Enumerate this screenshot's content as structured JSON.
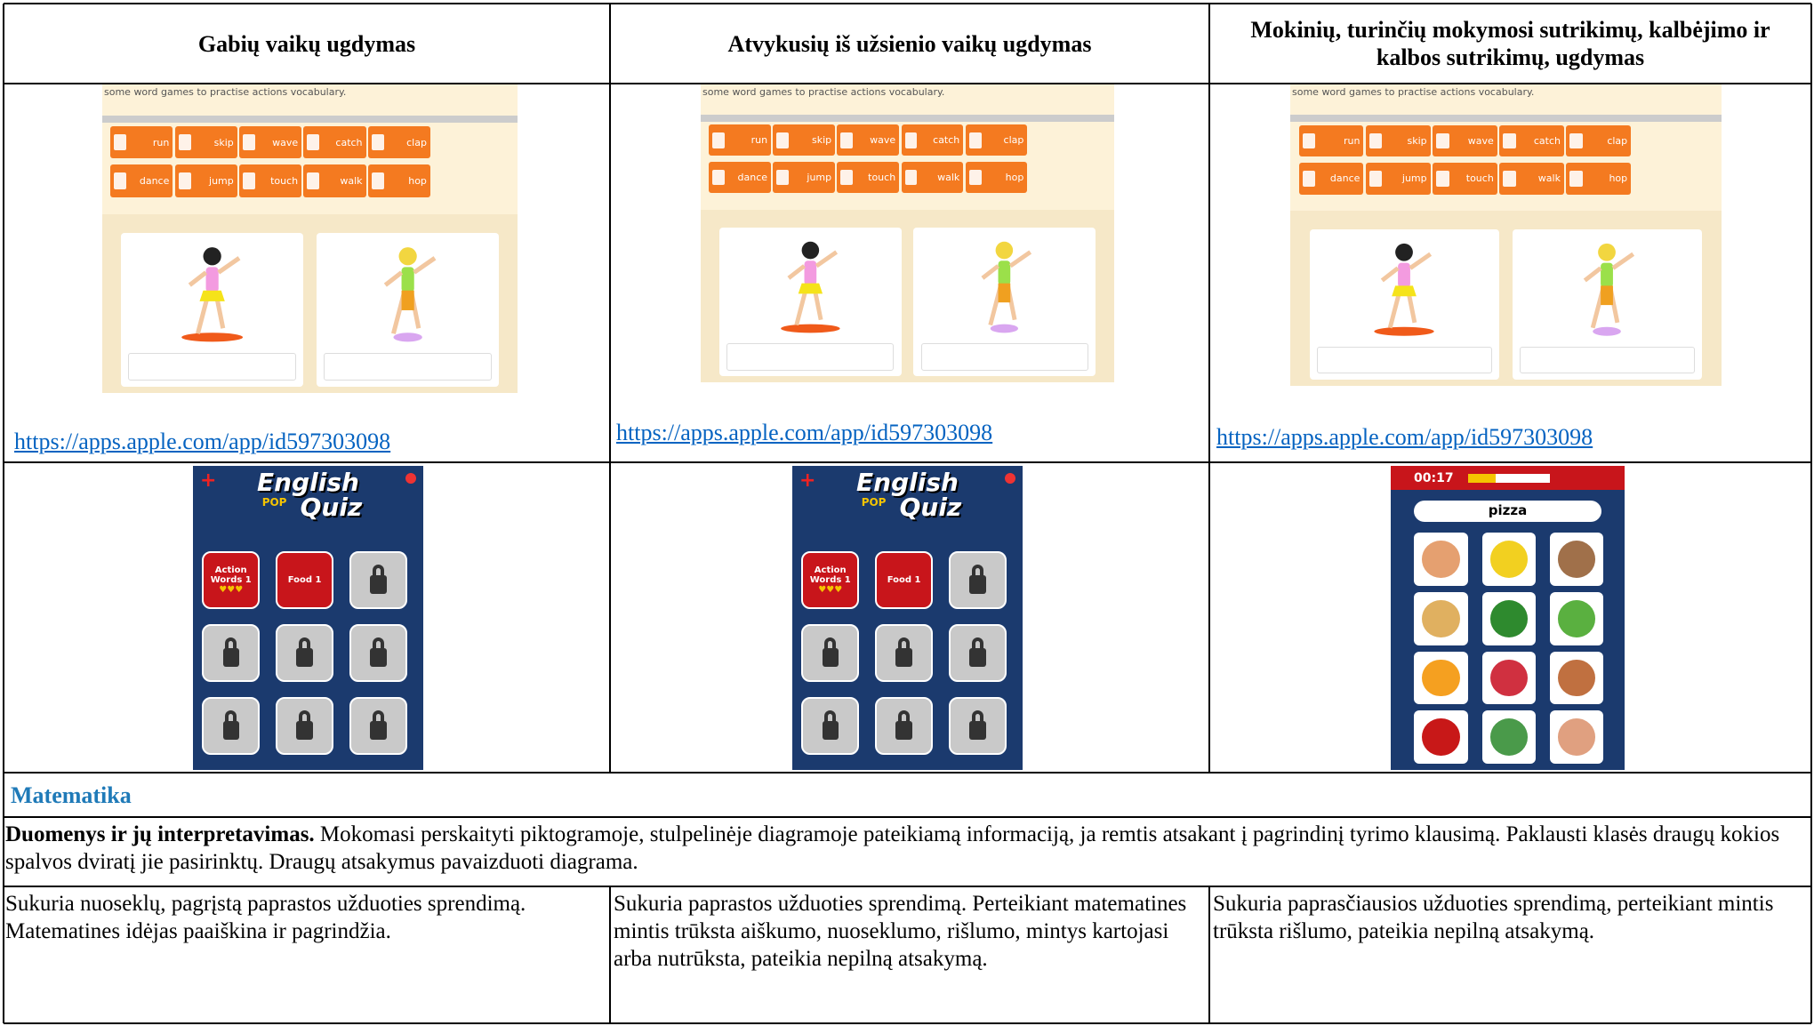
{
  "table": {
    "header": [
      "Gabių vaikų ugdymas",
      "Atvykusių iš užsienio vaikų ugdymas",
      "Mokinių, turinčių mokymosi sutrikimų, kalbėjimo ir kalbos sutrikimų, ugdymas"
    ],
    "links": [
      "https://apps.apple.com/app/id597303098",
      "https://apps.apple.com/app/id597303098",
      "https://apps.apple.com/app/id597303098"
    ],
    "section": "Matematika",
    "topic": {
      "title": "Duomenys ir jų interpretavimas.",
      "text": "Mokomasi perskaityti piktogramoje, stulpelinėje diagramoje pateikiamą informaciją, ja remtis atsakant į pagrindinį tyrimo klausimą. Paklausti klasės draugų kokios spalvos dviratį jie pasirinktų. Draugų atsakymus pavaizduoti diagrama."
    },
    "levels": [
      "Sukuria nuoseklų, pagrįstą paprastos užduoties sprendimą. Matematines idėjas paaiškina ir pagrindžia.",
      "Sukuria paprastos užduoties sprendimą. Perteikiant matematines mintis trūksta aiškumo, nuoseklumo, rišlumo, mintys kartojasi arba nutrūksta, pateikia nepilną atsakymą.",
      "Sukuria paprasčiausios užduoties sprendimą, perteikiant mintis trūksta rišlumo, pateikia nepilną atsakymą."
    ]
  },
  "screens": {
    "vocab": {
      "caption": "some word games to practise actions vocabulary.",
      "buttons": [
        "run",
        "skip",
        "wave",
        "catch",
        "clap",
        "dance",
        "jump",
        "touch",
        "walk",
        "hop"
      ]
    },
    "quiz": {
      "title_top": "English",
      "badge": "POP",
      "title_bottom": "Quiz",
      "tiles": [
        "Action Words 1",
        "Food 1"
      ]
    },
    "food": {
      "timer": "00:17",
      "word": "pizza"
    }
  }
}
